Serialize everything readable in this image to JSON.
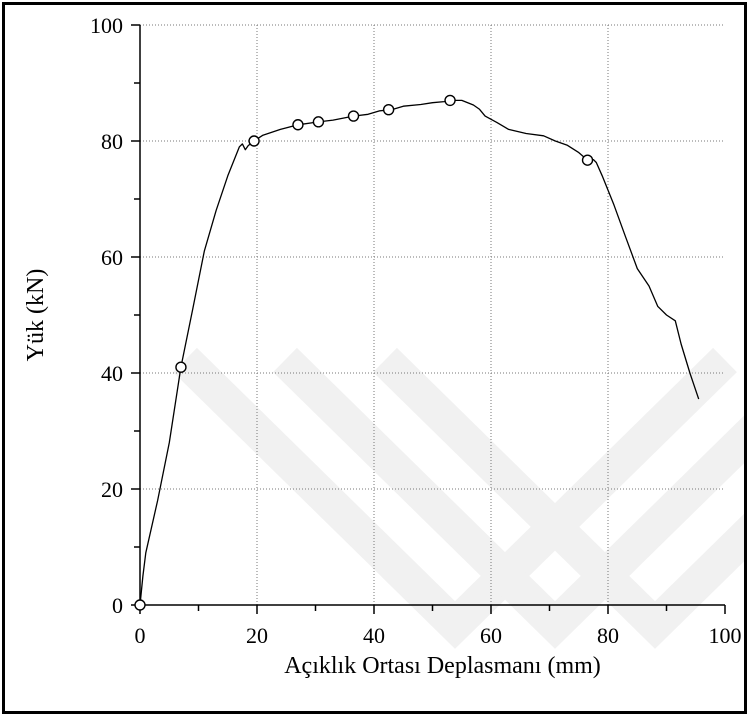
{
  "chart_data": {
    "type": "line",
    "xlabel": "Açıklık Ortası Deplasmanı (mm)",
    "ylabel": "Yük (kN)",
    "xlim": [
      0,
      100
    ],
    "ylim": [
      0,
      100
    ],
    "x_ticks": [
      "0",
      "20",
      "40",
      "60",
      "80",
      "100"
    ],
    "y_ticks": [
      "0",
      "20",
      "40",
      "60",
      "80",
      "100"
    ],
    "grid": true,
    "watermark": "chevron watermark (light gray)",
    "series": [
      {
        "color": "#000000",
        "curve": [
          [
            0,
            0
          ],
          [
            0.5,
            5
          ],
          [
            1,
            9
          ],
          [
            3,
            18
          ],
          [
            5,
            28
          ],
          [
            7,
            41
          ],
          [
            9,
            51
          ],
          [
            11,
            61
          ],
          [
            13,
            68
          ],
          [
            15,
            74
          ],
          [
            17,
            79
          ],
          [
            17.5,
            79.5
          ],
          [
            18,
            78.5
          ],
          [
            18.5,
            79.2
          ],
          [
            19.5,
            80
          ],
          [
            21,
            81
          ],
          [
            24,
            82
          ],
          [
            27,
            82.8
          ],
          [
            30.5,
            83.3
          ],
          [
            33,
            83.6
          ],
          [
            36.5,
            84.3
          ],
          [
            39,
            84.6
          ],
          [
            41,
            85.2
          ],
          [
            43,
            85.4
          ],
          [
            45,
            86
          ],
          [
            48,
            86.3
          ],
          [
            50,
            86.6
          ],
          [
            52,
            86.8
          ],
          [
            53.5,
            87
          ],
          [
            55,
            87
          ],
          [
            57,
            86.2
          ],
          [
            58,
            85.5
          ],
          [
            59,
            84.3
          ],
          [
            61,
            83.2
          ],
          [
            63,
            82
          ],
          [
            66,
            81.3
          ],
          [
            69,
            80.9
          ],
          [
            71,
            80
          ],
          [
            73,
            79.3
          ],
          [
            75,
            78
          ],
          [
            76.5,
            76.7
          ],
          [
            77.5,
            76.8
          ],
          [
            78,
            76.3
          ],
          [
            79,
            74
          ],
          [
            81,
            69
          ],
          [
            83,
            63.5
          ],
          [
            85,
            58
          ],
          [
            87,
            55
          ],
          [
            88.5,
            51.5
          ],
          [
            90,
            50
          ],
          [
            91.5,
            49
          ],
          [
            92.5,
            45
          ],
          [
            94,
            40
          ],
          [
            95.5,
            35.5
          ]
        ],
        "markers": [
          [
            0,
            0
          ],
          [
            7,
            41
          ],
          [
            19.5,
            80
          ],
          [
            27,
            82.8
          ],
          [
            30.5,
            83.3
          ],
          [
            36.5,
            84.3
          ],
          [
            42.5,
            85.4
          ],
          [
            53,
            87
          ],
          [
            76.5,
            76.7
          ]
        ],
        "marker_style": "open-circle"
      }
    ]
  }
}
